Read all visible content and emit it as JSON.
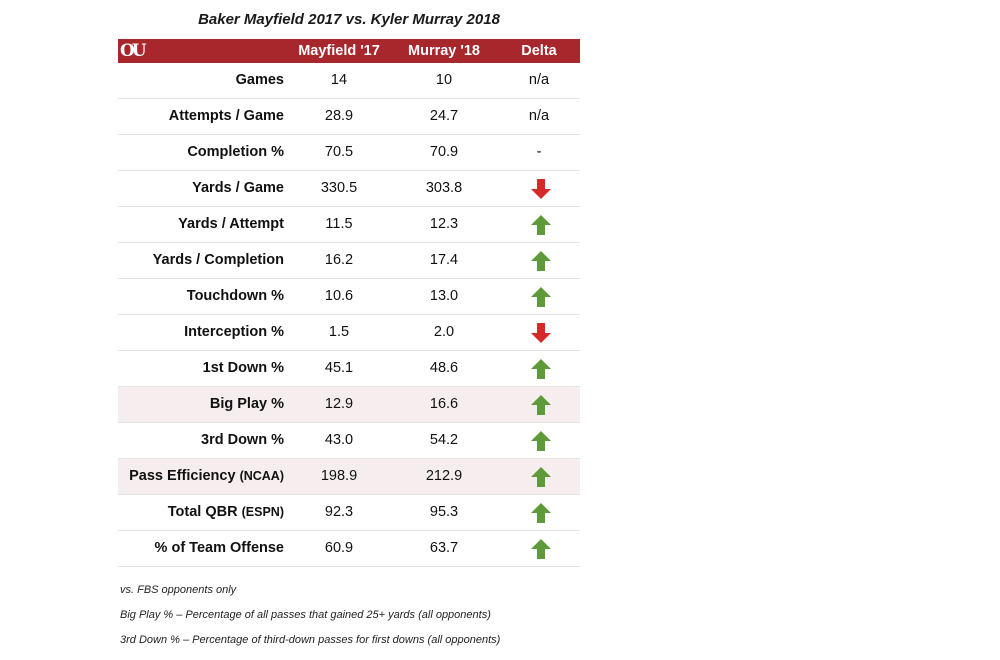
{
  "title": "Baker Mayfield 2017 vs. Kyler Murray 2018",
  "logo": "OU",
  "colors": {
    "header": "#a8272d",
    "up": "#5e9a3a",
    "down": "#d42a28",
    "shade": "#f6eeee"
  },
  "chart_data": {
    "type": "table",
    "columns": [
      "Mayfield '17",
      "Murray '18",
      "Delta"
    ],
    "rows": [
      {
        "label": "Games",
        "suffix": "",
        "mayfield": "14",
        "murray": "10",
        "delta": "n/a",
        "shaded": false
      },
      {
        "label": "Attempts / Game",
        "suffix": "",
        "mayfield": "28.9",
        "murray": "24.7",
        "delta": "n/a",
        "shaded": false
      },
      {
        "label": "Completion %",
        "suffix": "",
        "mayfield": "70.5",
        "murray": "70.9",
        "delta": "-",
        "shaded": false
      },
      {
        "label": "Yards / Game",
        "suffix": "",
        "mayfield": "330.5",
        "murray": "303.8",
        "delta": "down",
        "shaded": false
      },
      {
        "label": "Yards / Attempt",
        "suffix": "",
        "mayfield": "11.5",
        "murray": "12.3",
        "delta": "up",
        "shaded": false
      },
      {
        "label": "Yards / Completion",
        "suffix": "",
        "mayfield": "16.2",
        "murray": "17.4",
        "delta": "up",
        "shaded": false
      },
      {
        "label": "Touchdown %",
        "suffix": "",
        "mayfield": "10.6",
        "murray": "13.0",
        "delta": "up",
        "shaded": false
      },
      {
        "label": "Interception %",
        "suffix": "",
        "mayfield": "1.5",
        "murray": "2.0",
        "delta": "down",
        "shaded": false
      },
      {
        "label": "1st Down %",
        "suffix": "",
        "mayfield": "45.1",
        "murray": "48.6",
        "delta": "up",
        "shaded": false
      },
      {
        "label": "Big Play %",
        "suffix": "",
        "mayfield": "12.9",
        "murray": "16.6",
        "delta": "up",
        "shaded": true
      },
      {
        "label": "3rd Down %",
        "suffix": "",
        "mayfield": "43.0",
        "murray": "54.2",
        "delta": "up",
        "shaded": false
      },
      {
        "label": "Pass Efficiency",
        "suffix": "(NCAA)",
        "mayfield": "198.9",
        "murray": "212.9",
        "delta": "up",
        "shaded": true
      },
      {
        "label": "Total QBR",
        "suffix": "(ESPN)",
        "mayfield": "92.3",
        "murray": "95.3",
        "delta": "up",
        "shaded": false
      },
      {
        "label": "% of Team Offense",
        "suffix": "",
        "mayfield": "60.9",
        "murray": "63.7",
        "delta": "up",
        "shaded": false
      }
    ]
  },
  "notes": [
    "vs. FBS opponents only",
    "Big Play % – Percentage of all passes that gained 25+ yards (all opponents)",
    "3rd Down % – Percentage of third-down passes for first downs (all opponents)"
  ]
}
